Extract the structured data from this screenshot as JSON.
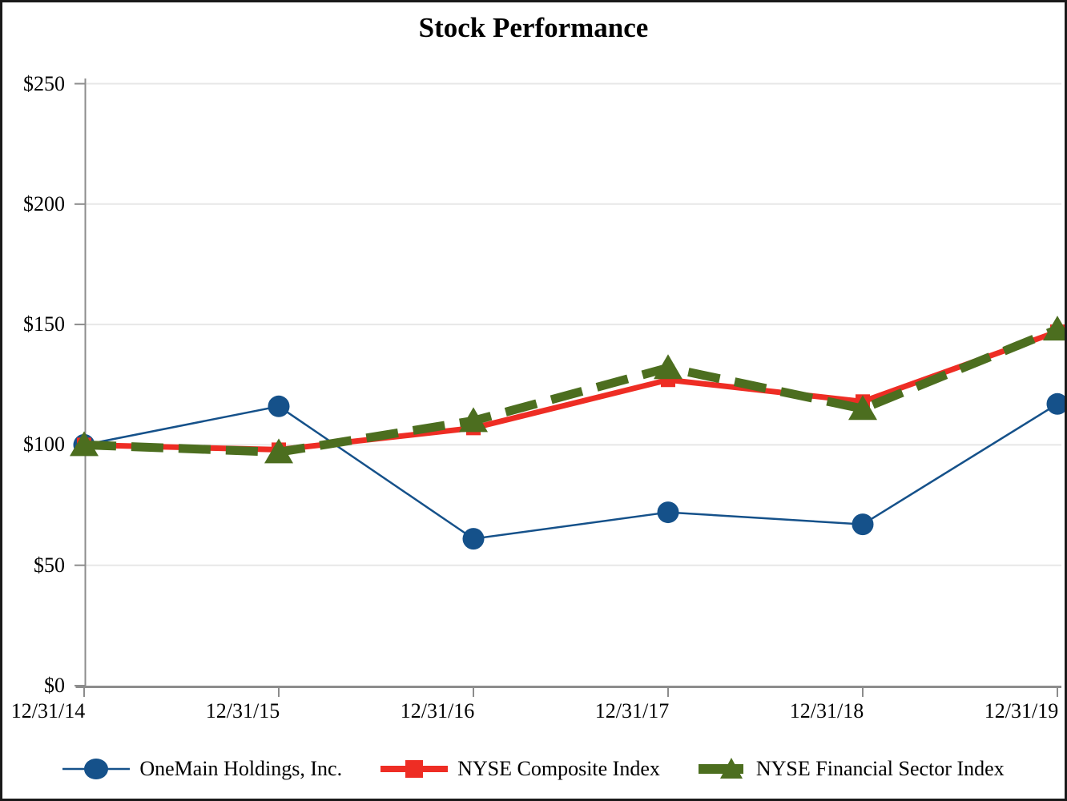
{
  "chart_data": {
    "type": "line",
    "title": "Stock Performance",
    "categories": [
      "12/31/14",
      "12/31/15",
      "12/31/16",
      "12/31/17",
      "12/31/18",
      "12/31/19"
    ],
    "series": [
      {
        "name": "OneMain Holdings, Inc.",
        "color": "#15518A",
        "marker": "circle",
        "line": "solid-thin",
        "values": [
          100,
          116,
          61,
          72,
          67,
          117
        ]
      },
      {
        "name": "NYSE Composite Index",
        "color": "#EE2D24",
        "marker": "square",
        "line": "solid-thick",
        "values": [
          100,
          98,
          107,
          127,
          118,
          147
        ]
      },
      {
        "name": "NYSE Financial Sector Index",
        "color": "#4C6E1F",
        "marker": "triangle",
        "line": "dashed",
        "values": [
          100,
          97,
          110,
          132,
          115,
          148
        ]
      }
    ],
    "ylim": [
      0,
      250
    ],
    "yticks": [
      250,
      200,
      150,
      100,
      50,
      0
    ],
    "ytick_labels": [
      "$250",
      "$200",
      "$150",
      "$100",
      "$50",
      "$0"
    ],
    "grid": "horizontal",
    "legend_position": "bottom",
    "axis_color": "#8C8C8C",
    "grid_color": "#E7E7E7"
  }
}
